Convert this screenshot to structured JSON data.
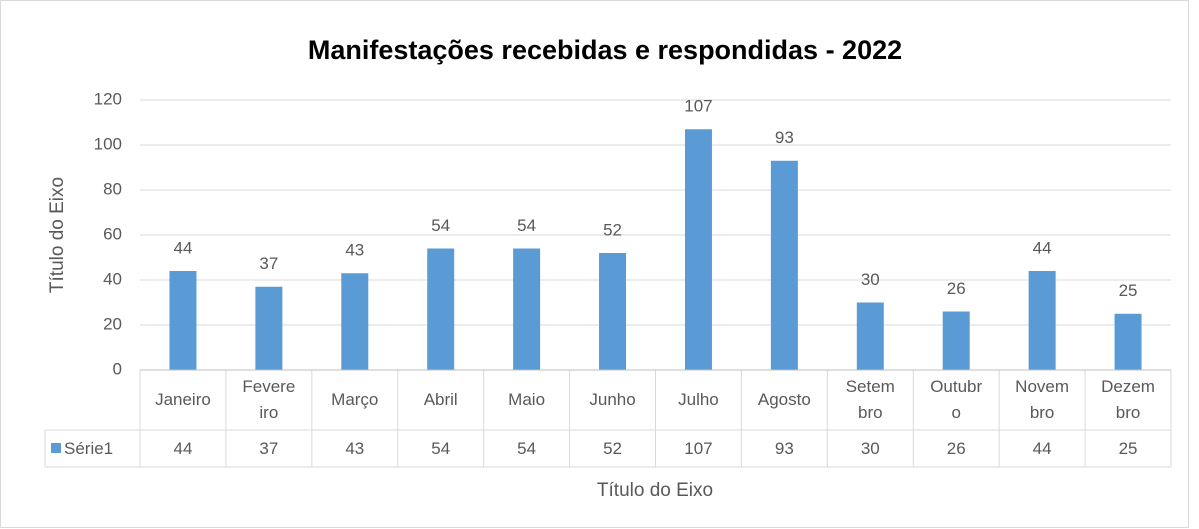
{
  "chart_data": {
    "type": "bar",
    "title": "Manifestações recebidas e respondidas - 2022",
    "x_label": "Título do Eixo",
    "y_label": "Título do Eixo",
    "categories": [
      "Janeiro",
      "Fevereiro",
      "Março",
      "Abril",
      "Maio",
      "Junho",
      "Julho",
      "Agosto",
      "Setembro",
      "Outubro",
      "Novembro",
      "Dezembro"
    ],
    "series": [
      {
        "name": "Série1",
        "color": "#5b9bd5",
        "values": [
          44,
          37,
          43,
          54,
          54,
          52,
          107,
          93,
          30,
          26,
          44,
          25
        ]
      }
    ],
    "ylim": [
      0,
      120
    ],
    "yticks": [
      0,
      20,
      40,
      60,
      80,
      100,
      120
    ],
    "grid": true,
    "data_table": true
  }
}
